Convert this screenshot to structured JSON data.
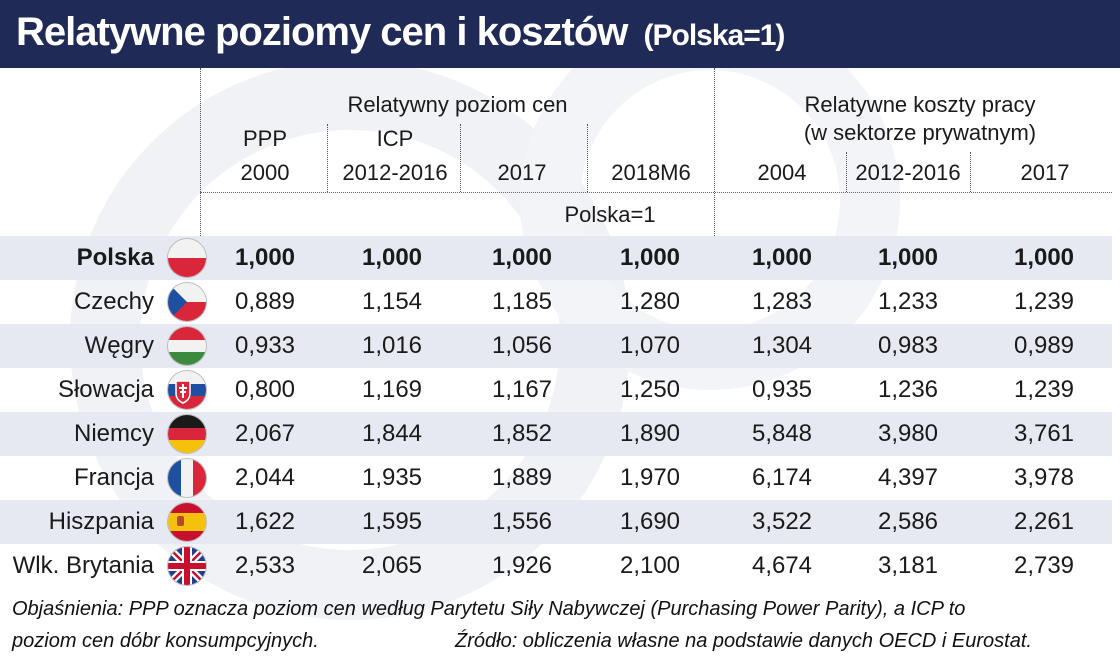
{
  "title": {
    "main": "Relatywne poziomy cen i kosztów",
    "sub": "(Polska=1)"
  },
  "headers": {
    "group_prices": "Relatywny poziom cen",
    "group_costs_line1": "Relatywne koszty pracy",
    "group_costs_line2": "(w sektorze prywatnym)",
    "col1_line1": "PPP",
    "col1_line2": "2000",
    "col2_line1": "ICP",
    "col2_line2": "2012-2016",
    "col3": "2017",
    "col4": "2018M6",
    "col5": "2004",
    "col6": "2012-2016",
    "col7": "2017",
    "unit_row": "Polska=1"
  },
  "rows": [
    {
      "country": "Polska",
      "flag": "poland-flag-icon",
      "values": [
        "1,000",
        "1,000",
        "1,000",
        "1,000",
        "1,000",
        "1,000",
        "1,000"
      ]
    },
    {
      "country": "Czechy",
      "flag": "czechia-flag-icon",
      "values": [
        "0,889",
        "1,154",
        "1,185",
        "1,280",
        "1,283",
        "1,233",
        "1,239"
      ]
    },
    {
      "country": "Węgry",
      "flag": "hungary-flag-icon",
      "values": [
        "0,933",
        "1,016",
        "1,056",
        "1,070",
        "1,304",
        "0,983",
        "0,989"
      ]
    },
    {
      "country": "Słowacja",
      "flag": "slovakia-flag-icon",
      "values": [
        "0,800",
        "1,169",
        "1,167",
        "1,250",
        "0,935",
        "1,236",
        "1,239"
      ]
    },
    {
      "country": "Niemcy",
      "flag": "germany-flag-icon",
      "values": [
        "2,067",
        "1,844",
        "1,852",
        "1,890",
        "5,848",
        "3,980",
        "3,761"
      ]
    },
    {
      "country": "Francja",
      "flag": "france-flag-icon",
      "values": [
        "2,044",
        "1,935",
        "1,889",
        "1,970",
        "6,174",
        "4,397",
        "3,978"
      ]
    },
    {
      "country": "Hiszpania",
      "flag": "spain-flag-icon",
      "values": [
        "1,622",
        "1,595",
        "1,556",
        "1,690",
        "3,522",
        "2,586",
        "2,261"
      ]
    },
    {
      "country": "Wlk. Brytania",
      "flag": "uk-flag-icon",
      "values": [
        "2,533",
        "2,065",
        "1,926",
        "2,100",
        "4,674",
        "3,181",
        "2,739"
      ]
    }
  ],
  "notes": {
    "line1": "Objaśnienia: PPP oznacza poziom cen według Parytetu Siły Nabywczej (Purchasing Power Parity), a ICP to",
    "line2a": "poziom cen dóbr konsumpcyjnych.",
    "line2b": "Źródło: obliczenia własne na podstawie danych OECD i Eurostat."
  },
  "colors": {
    "title_bg": "#1f2a56",
    "row_shade": "#e6e8f2"
  }
}
